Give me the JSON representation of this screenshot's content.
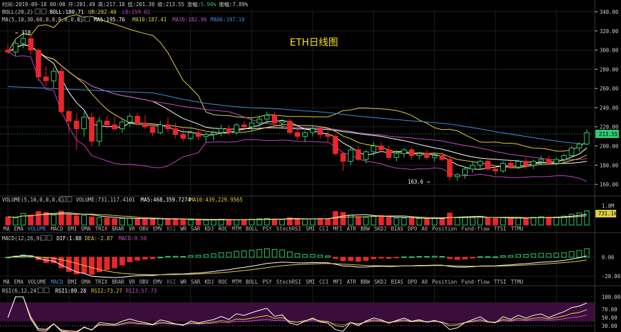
{
  "chart_title": "ETH日线图",
  "info_bar": {
    "time_label": "时间:",
    "time": "2019-09-18 00:00",
    "open_label": "开:",
    "open": "201.49",
    "high_label": "高:",
    "high": "217.18",
    "low_label": "低:",
    "low": "201.30",
    "close_label": "收:",
    "close": "213.55",
    "change_label": "涨幅:",
    "change": "5.94%",
    "amplitude_label": "振幅:",
    "amplitude": "7.89%"
  },
  "legends": {
    "boll_name": "BOLL(20,2)",
    "boll_mid": "BOLL:180.71",
    "boll_ub": "UB:202.40",
    "boll_lb": "LB:159.02",
    "ma_name": "MA(5,10,30,60,0,0,0,0,0,0)",
    "ma5": "MA5:195.76",
    "ma10": "MA10:187.41",
    "ma30": "MA30:182.96",
    "ma60": "MA60:197.10",
    "vol_name": "VOLUME(5,10,0,0,0,0)",
    "vol": "VOLUME:731,117.4101",
    "vol_ma5": "MA5:468,359.7274",
    "vol_ma10": "MA10:439,229.9565",
    "macd_name": "MACD(12,26,9)",
    "dif": "DIF:1.88",
    "dea": "DEA:-2.87",
    "macd": "MACD:9.50",
    "rsi_name": "RSI(6,12,24)",
    "rsi1": "RSI1:89.28",
    "rsi2": "RSI2:73.27",
    "rsi3": "RSI3:57.73"
  },
  "indicator_tabs": [
    "MA",
    "EMA",
    "VOLUME",
    "MACD",
    "DMI",
    "DMA",
    "TRIX",
    "BRAR",
    "VR",
    "OBV",
    "EMV",
    "RSI",
    "WR",
    "SAR",
    "KDJ",
    "ROC",
    "MTM",
    "BOLL",
    "PSY",
    "StochRSI",
    "SMI",
    "CCI",
    "MFI",
    "ATR",
    "BBW",
    "SKDJ",
    "BIAS",
    "DPO",
    "AO",
    "Position",
    "Fund-flow",
    "TTSI",
    "TTMU"
  ],
  "annotations": {
    "high_marker": "← 318",
    "low_marker": "163.6 →",
    "last_price": "213.55",
    "last_volume": "731.1k"
  },
  "colors": {
    "up": "#2ecc71",
    "down": "#e8262b",
    "boll_mid": "#ffffff",
    "boll_ub": "#e0d040",
    "boll_lb": "#c040c0",
    "ma5": "#ffffff",
    "ma10": "#e0d040",
    "ma30": "#c050c0",
    "ma60": "#3d8fd8",
    "axis": "#cccccc",
    "grid": "#1e1e1e"
  },
  "chart_data": [
    {
      "type": "candlestick",
      "title": "ETH日线图",
      "ylim": [
        150,
        340
      ],
      "yticks": [
        160,
        180,
        200,
        220,
        240,
        260,
        280,
        300,
        320,
        340
      ],
      "candles": [
        [
          300,
          306,
          296,
          298
        ],
        [
          298,
          310,
          294,
          307
        ],
        [
          307,
          318,
          302,
          312
        ],
        [
          312,
          316,
          295,
          300
        ],
        [
          300,
          302,
          268,
          272
        ],
        [
          272,
          283,
          262,
          268
        ],
        [
          268,
          282,
          260,
          278
        ],
        [
          278,
          282,
          234,
          236
        ],
        [
          236,
          238,
          214,
          226
        ],
        [
          226,
          234,
          196,
          218
        ],
        [
          218,
          236,
          210,
          230
        ],
        [
          230,
          235,
          200,
          205
        ],
        [
          205,
          230,
          200,
          226
        ],
        [
          226,
          232,
          218,
          222
        ],
        [
          222,
          230,
          216,
          218
        ],
        [
          218,
          228,
          214,
          225
        ],
        [
          225,
          234,
          220,
          231
        ],
        [
          231,
          234,
          222,
          224
        ],
        [
          224,
          232,
          218,
          220
        ],
        [
          220,
          224,
          210,
          214
        ],
        [
          214,
          226,
          212,
          222
        ],
        [
          222,
          230,
          214,
          218
        ],
        [
          218,
          224,
          208,
          212
        ],
        [
          212,
          218,
          205,
          208
        ],
        [
          208,
          216,
          206,
          214
        ],
        [
          214,
          218,
          206,
          210
        ],
        [
          210,
          214,
          204,
          212
        ],
        [
          212,
          216,
          206,
          214
        ],
        [
          214,
          222,
          210,
          218
        ],
        [
          218,
          222,
          212,
          214
        ],
        [
          214,
          224,
          212,
          222
        ],
        [
          222,
          226,
          216,
          220
        ],
        [
          220,
          230,
          216,
          224
        ],
        [
          224,
          232,
          220,
          228
        ],
        [
          228,
          236,
          224,
          232
        ],
        [
          232,
          236,
          222,
          224
        ],
        [
          224,
          228,
          218,
          226
        ],
        [
          226,
          228,
          212,
          214
        ],
        [
          214,
          220,
          206,
          210
        ],
        [
          210,
          216,
          204,
          214
        ],
        [
          214,
          222,
          210,
          218
        ],
        [
          218,
          220,
          208,
          212
        ],
        [
          212,
          216,
          204,
          210
        ],
        [
          210,
          212,
          190,
          192
        ],
        [
          192,
          194,
          174,
          184
        ],
        [
          184,
          200,
          180,
          196
        ],
        [
          196,
          200,
          184,
          186
        ],
        [
          186,
          196,
          182,
          194
        ],
        [
          194,
          204,
          190,
          200
        ],
        [
          200,
          204,
          192,
          196
        ],
        [
          196,
          200,
          186,
          188
        ],
        [
          188,
          196,
          184,
          192
        ],
        [
          192,
          198,
          188,
          196
        ],
        [
          196,
          198,
          186,
          190
        ],
        [
          190,
          194,
          186,
          192
        ],
        [
          192,
          196,
          186,
          188
        ],
        [
          188,
          192,
          184,
          190
        ],
        [
          190,
          194,
          184,
          186
        ],
        [
          186,
          190,
          164,
          168
        ],
        [
          168,
          172,
          164,
          170
        ],
        [
          170,
          178,
          166,
          176
        ],
        [
          176,
          184,
          172,
          180
        ],
        [
          180,
          186,
          176,
          184
        ],
        [
          184,
          188,
          174,
          176
        ],
        [
          176,
          180,
          170,
          174
        ],
        [
          174,
          184,
          172,
          182
        ],
        [
          182,
          186,
          176,
          178
        ],
        [
          178,
          186,
          176,
          184
        ],
        [
          184,
          188,
          176,
          180
        ],
        [
          180,
          186,
          176,
          184
        ],
        [
          184,
          190,
          180,
          186
        ],
        [
          186,
          190,
          180,
          182
        ],
        [
          182,
          188,
          180,
          186
        ],
        [
          186,
          192,
          182,
          190
        ],
        [
          190,
          200,
          188,
          198
        ],
        [
          198,
          204,
          194,
          202
        ],
        [
          202,
          217,
          201,
          214
        ]
      ],
      "indicators": {
        "BOLL": {
          "mid": 180.71,
          "ub": 202.4,
          "lb": 159.02
        },
        "MA5": 195.76,
        "MA10": 187.41,
        "MA30": 182.96,
        "MA60": 197.1
      }
    },
    {
      "type": "bar",
      "name": "VOLUME",
      "ylim": [
        0,
        1000000
      ],
      "yticks": [
        "1.0M"
      ],
      "values": [
        420000,
        380000,
        600000,
        520000,
        700000,
        650000,
        520000,
        720000,
        560000,
        480000,
        500000,
        420000,
        380000,
        360000,
        330000,
        340000,
        360000,
        320000,
        300000,
        310000,
        330000,
        300000,
        320000,
        280000,
        260000,
        270000,
        250000,
        260000,
        300000,
        280000,
        260000,
        280000,
        300000,
        320000,
        340000,
        300000,
        280000,
        380000,
        340000,
        300000,
        310000,
        320000,
        340000,
        700000,
        650000,
        520000,
        420000,
        400000,
        460000,
        500000,
        380000,
        360000,
        360000,
        360000,
        340000,
        330000,
        340000,
        330000,
        620000,
        380000,
        420000,
        430000,
        400000,
        360000,
        340000,
        380000,
        360000,
        360000,
        360000,
        400000,
        430000,
        400000,
        410000,
        460000,
        560000,
        620000,
        731117
      ]
    },
    {
      "type": "bar",
      "name": "MACD",
      "ylim": [
        -25,
        15
      ],
      "yticks": [
        -20,
        0
      ],
      "dif": 1.88,
      "dea": -2.87,
      "macd": 9.5
    },
    {
      "type": "line",
      "name": "RSI",
      "ylim": [
        20,
        105
      ],
      "yticks": [
        30,
        50,
        70,
        100
      ],
      "rsi1": 89.28,
      "rsi2": 73.27,
      "rsi3": 57.73
    }
  ]
}
